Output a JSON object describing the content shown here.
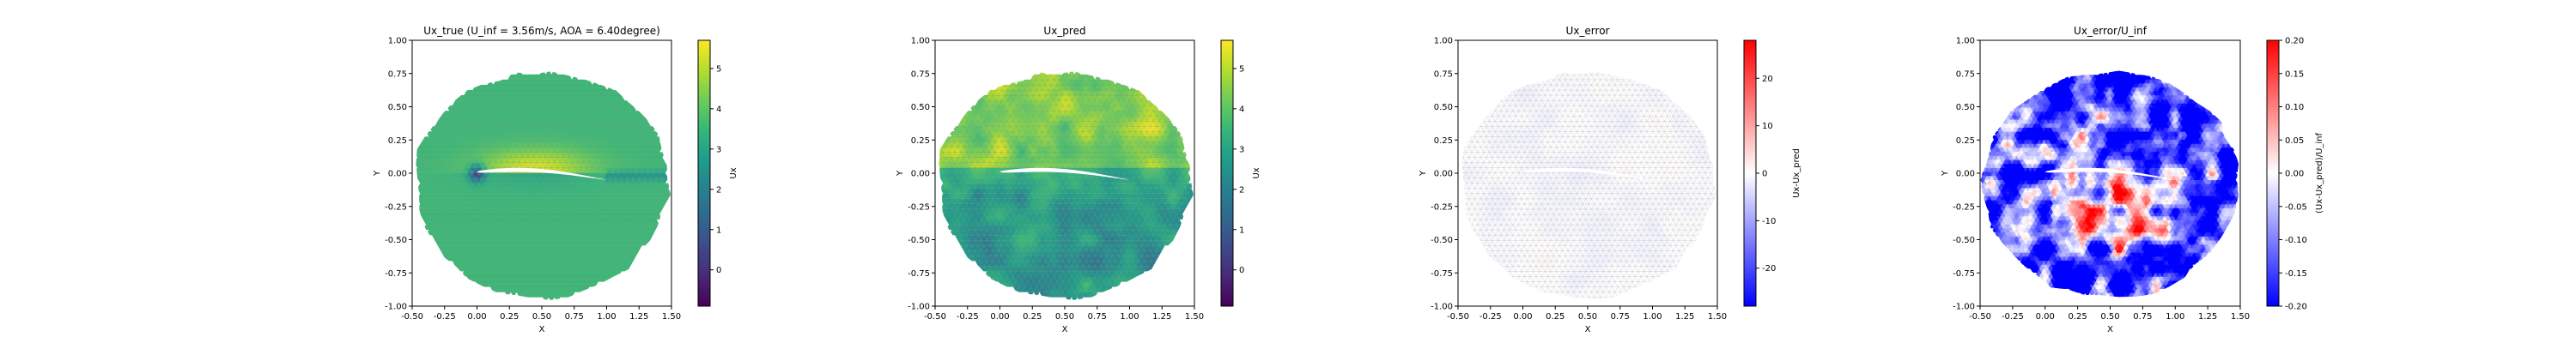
{
  "chart_data": [
    {
      "type": "heatmap",
      "title": "Ux_true (U_inf = 3.56m/s, AOA = 6.40degree)",
      "xlabel": "X",
      "ylabel": "Y",
      "xlim": [
        -0.5,
        1.5
      ],
      "ylim": [
        -1.0,
        1.0
      ],
      "xticks": [
        -0.5,
        -0.25,
        0.0,
        0.25,
        0.5,
        0.75,
        1.0,
        1.25,
        1.5
      ],
      "yticks": [
        -1.0,
        -0.75,
        -0.5,
        -0.25,
        0.0,
        0.25,
        0.5,
        0.75,
        1.0
      ],
      "colorbar": {
        "label": "Ux",
        "colormap": "viridis",
        "min": -0.9,
        "max": 5.7,
        "ticks": [
          0,
          1,
          2,
          3,
          4,
          5
        ]
      },
      "field": {
        "freestream_value": 3.56,
        "upper_surface_max": 5.3,
        "lower_surface_value": 3.0,
        "wake_value": 2.6,
        "stagnation_value": 0.5
      },
      "mesh_color": "#7b7b7b"
    },
    {
      "type": "heatmap",
      "title": "Ux_pred",
      "xlabel": "X",
      "ylabel": "Y",
      "xlim": [
        -0.5,
        1.5
      ],
      "ylim": [
        -1.0,
        1.0
      ],
      "xticks": [
        -0.5,
        -0.25,
        0.0,
        0.25,
        0.5,
        0.75,
        1.0,
        1.25,
        1.5
      ],
      "yticks": [
        -1.0,
        -0.75,
        -0.5,
        -0.25,
        0.0,
        0.25,
        0.5,
        0.75,
        1.0
      ],
      "colorbar": {
        "label": "Ux",
        "colormap": "viridis",
        "min": -0.9,
        "max": 5.7,
        "ticks": [
          0,
          1,
          2,
          3,
          4,
          5
        ]
      },
      "field": {
        "upper_region_value": 4.6,
        "lower_region_value": 2.6,
        "noise_amplitude": 1.2
      },
      "mesh_color": "#7b7b7b"
    },
    {
      "type": "heatmap",
      "title": "Ux_error",
      "xlabel": "X",
      "ylabel": "Y",
      "xlim": [
        -0.5,
        1.5
      ],
      "ylim": [
        -1.0,
        1.0
      ],
      "xticks": [
        -0.5,
        -0.25,
        0.0,
        0.25,
        0.5,
        0.75,
        1.0,
        1.25,
        1.5
      ],
      "yticks": [
        -1.0,
        -0.75,
        -0.5,
        -0.25,
        0.0,
        0.25,
        0.5,
        0.75,
        1.0
      ],
      "colorbar": {
        "label": "Ux-Ux_pred",
        "colormap": "bwr",
        "min": -28,
        "max": 28,
        "ticks": [
          -20,
          -10,
          0,
          10,
          20
        ]
      },
      "field": {
        "typical_error": -0.5,
        "noise_amplitude": 1.5
      },
      "mesh_color": "#9a9a9a"
    },
    {
      "type": "heatmap",
      "title": "Ux_error/U_inf",
      "xlabel": "X",
      "ylabel": "Y",
      "xlim": [
        -0.5,
        1.5
      ],
      "ylim": [
        -1.0,
        1.0
      ],
      "xticks": [
        -0.5,
        -0.25,
        0.0,
        0.25,
        0.5,
        0.75,
        1.0,
        1.25,
        1.5
      ],
      "yticks": [
        -1.0,
        -0.75,
        -0.5,
        -0.25,
        0.0,
        0.25,
        0.5,
        0.75,
        1.0
      ],
      "colorbar": {
        "label": "(Ux-Ux_pred)/U_inf",
        "colormap": "bwr",
        "min": -0.2,
        "max": 0.2,
        "ticks": [
          -0.2,
          -0.15,
          -0.1,
          -0.05,
          0.0,
          0.05,
          0.1,
          0.15,
          0.2
        ]
      },
      "field": {
        "clipped": true,
        "noise_amplitude": 0.35
      },
      "mesh_color": null
    }
  ]
}
